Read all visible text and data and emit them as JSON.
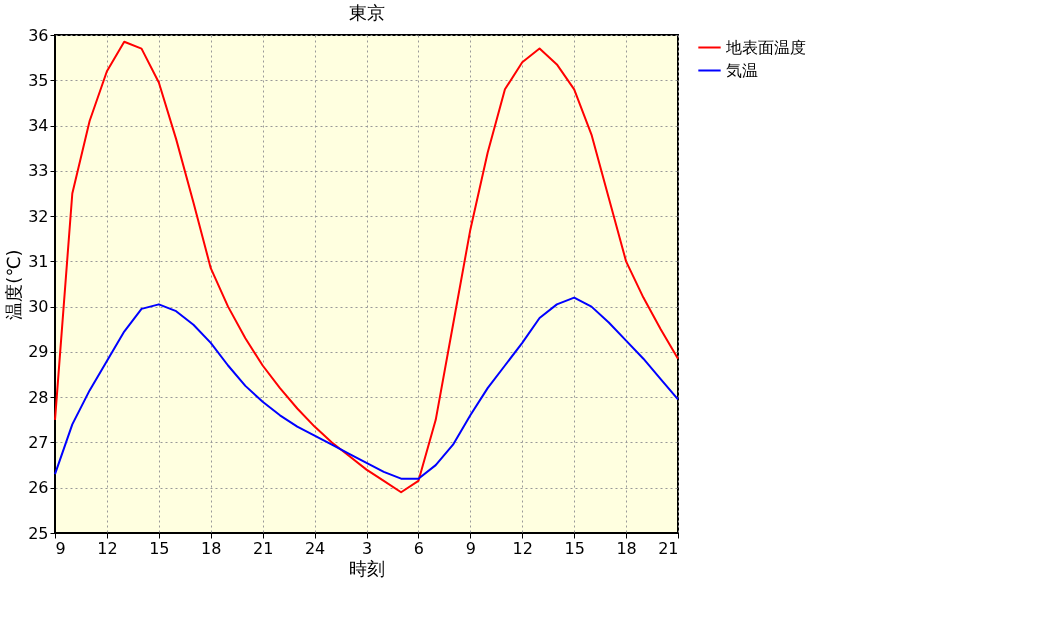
{
  "chart_data": {
    "type": "line",
    "title": "東京",
    "xlabel": "時刻",
    "ylabel": "温度(℃)",
    "categories": [
      "9",
      null,
      null,
      "12",
      null,
      null,
      "15",
      null,
      null,
      "18",
      null,
      null,
      "21",
      null,
      null,
      "24",
      null,
      null,
      "3",
      null,
      null,
      "6",
      null,
      null,
      "9",
      null,
      null,
      "12",
      null,
      null,
      "15",
      null,
      null,
      "18",
      null,
      null,
      "21"
    ],
    "series": [
      {
        "name": "地表面温度",
        "color": "#ff0000",
        "values": [
          27.5,
          32.5,
          34.1,
          35.2,
          35.85,
          35.7,
          34.95,
          33.7,
          32.3,
          30.85,
          30.0,
          29.3,
          28.7,
          28.2,
          27.75,
          27.35,
          27.0,
          26.7,
          26.4,
          26.15,
          25.9,
          26.15,
          27.5,
          29.6,
          31.7,
          33.4,
          34.8,
          35.4,
          35.7,
          35.35,
          34.8,
          33.8,
          32.4,
          31.0,
          30.2,
          29.5,
          28.85
        ]
      },
      {
        "name": "気温",
        "color": "#0000ff",
        "values": [
          26.3,
          27.4,
          28.15,
          28.8,
          29.45,
          29.95,
          30.05,
          29.9,
          29.6,
          29.2,
          28.7,
          28.25,
          27.9,
          27.6,
          27.35,
          27.15,
          26.95,
          26.75,
          26.55,
          26.35,
          26.2,
          26.2,
          26.5,
          26.95,
          27.6,
          28.2,
          28.7,
          29.2,
          29.75,
          30.05,
          30.2,
          30.0,
          29.65,
          29.25,
          28.85,
          28.4,
          27.95
        ]
      }
    ],
    "ylim": [
      25,
      36
    ],
    "yticks": [
      25,
      26,
      27,
      28,
      29,
      30,
      31,
      32,
      33,
      34,
      35,
      36
    ],
    "grid": true,
    "legend": "top right",
    "marker": "none",
    "line_style": "solid"
  }
}
